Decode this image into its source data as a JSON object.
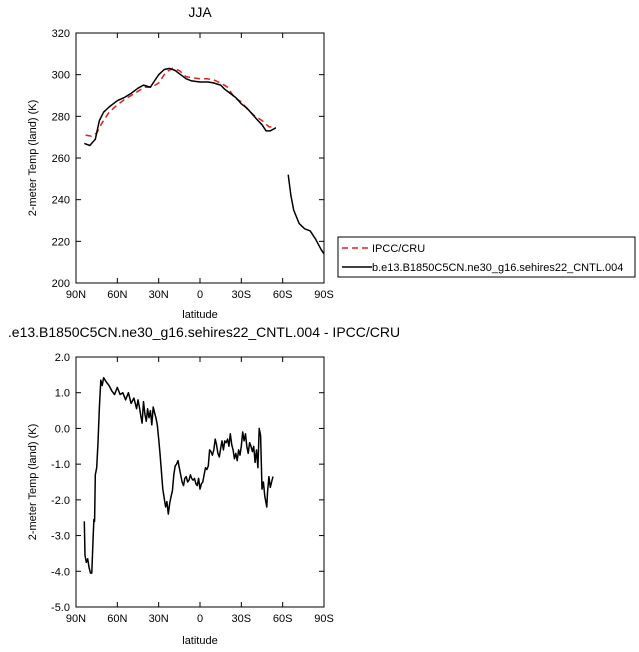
{
  "colors": {
    "cru": "#e01f1f",
    "model": "#000000",
    "axis": "#000000"
  },
  "chart_data": [
    {
      "type": "line",
      "title": "JJA",
      "xlabel": "latitude",
      "ylabel": "2-meter Temp (land) (K)",
      "xlim": [
        90,
        -90
      ],
      "ylim": [
        200,
        320
      ],
      "xticks": [
        {
          "v": 90,
          "label": "90N"
        },
        {
          "v": 60,
          "label": "60N"
        },
        {
          "v": 30,
          "label": "30N"
        },
        {
          "v": 0,
          "label": "0"
        },
        {
          "v": -30,
          "label": "30S"
        },
        {
          "v": -60,
          "label": "60S"
        },
        {
          "v": -90,
          "label": "90S"
        }
      ],
      "yticks": [
        {
          "v": 200,
          "label": "200"
        },
        {
          "v": 220,
          "label": "220"
        },
        {
          "v": 240,
          "label": "240"
        },
        {
          "v": 260,
          "label": "260"
        },
        {
          "v": 280,
          "label": "280"
        },
        {
          "v": 300,
          "label": "300"
        },
        {
          "v": 320,
          "label": "320"
        }
      ],
      "legend": {
        "placement": "right",
        "entries": [
          "IPCC/CRU",
          "b.e13.B1850C5CN.ne30_g16.sehires22_CNTL.004"
        ]
      },
      "series": [
        {
          "name": "IPCC/CRU",
          "style": "dashed",
          "segments": [
            [
              [
                83,
                271
              ],
              [
                79,
                270.5
              ],
              [
                75,
                272
              ],
              [
                71,
                277
              ],
              [
                66,
                282
              ],
              [
                60,
                285.5
              ],
              [
                55,
                288
              ],
              [
                50,
                290
              ],
              [
                45,
                292
              ],
              [
                40,
                294
              ],
              [
                35,
                294
              ],
              [
                30,
                296
              ],
              [
                25,
                301
              ],
              [
                20,
                303
              ],
              [
                15,
                302
              ],
              [
                10,
                299
              ],
              [
                5,
                298.5
              ],
              [
                0,
                298
              ],
              [
                -5,
                298
              ],
              [
                -10,
                297.5
              ],
              [
                -15,
                296
              ],
              [
                -20,
                294
              ],
              [
                -25,
                289
              ],
              [
                -30,
                287
              ],
              [
                -35,
                283
              ],
              [
                -40,
                280
              ],
              [
                -45,
                278
              ],
              [
                -50,
                275
              ],
              [
                -55,
                274.5
              ]
            ]
          ]
        },
        {
          "name": "b.e13.B1850C5CN.ne30_g16.sehires22_CNTL.004",
          "style": "solid",
          "segments": [
            [
              [
                84,
                267
              ],
              [
                80,
                266
              ],
              [
                76,
                269
              ],
              [
                73,
                278
              ],
              [
                70,
                282
              ],
              [
                66,
                284.5
              ],
              [
                60,
                287.5
              ],
              [
                55,
                289
              ],
              [
                50,
                291
              ],
              [
                45,
                293.5
              ],
              [
                41,
                295
              ],
              [
                36,
                294
              ],
              [
                33,
                297
              ],
              [
                30,
                300
              ],
              [
                26,
                302.5
              ],
              [
                22,
                303
              ],
              [
                18,
                302
              ],
              [
                14,
                300
              ],
              [
                10,
                298
              ],
              [
                6,
                297
              ],
              [
                0,
                296.5
              ],
              [
                -6,
                296.5
              ],
              [
                -10,
                296
              ],
              [
                -15,
                295
              ],
              [
                -18,
                293
              ],
              [
                -22,
                291
              ],
              [
                -26,
                289
              ],
              [
                -30,
                286
              ],
              [
                -34,
                284
              ],
              [
                -38,
                281
              ],
              [
                -42,
                278
              ],
              [
                -45,
                276
              ],
              [
                -48,
                273
              ],
              [
                -51,
                273
              ],
              [
                -55,
                274.5
              ]
            ],
            [
              [
                -64,
                252
              ],
              [
                -66,
                242
              ],
              [
                -68,
                235
              ],
              [
                -72,
                228.5
              ],
              [
                -76,
                226
              ],
              [
                -80,
                225
              ],
              [
                -84,
                221
              ],
              [
                -88,
                216
              ],
              [
                -90,
                214
              ]
            ]
          ]
        }
      ]
    },
    {
      "type": "line",
      "title": ".e13.B1850C5CN.ne30_g16.sehires22_CNTL.004 - IPCC/CRU",
      "xlabel": "latitude",
      "ylabel": "2-meter Temp (land) (K)",
      "xlim": [
        90,
        -90
      ],
      "ylim": [
        -5,
        2
      ],
      "xticks": [
        {
          "v": 90,
          "label": "90N"
        },
        {
          "v": 60,
          "label": "60N"
        },
        {
          "v": 30,
          "label": "30N"
        },
        {
          "v": 0,
          "label": "0"
        },
        {
          "v": -30,
          "label": "30S"
        },
        {
          "v": -60,
          "label": "60S"
        },
        {
          "v": -90,
          "label": "90S"
        }
      ],
      "yticks": [
        {
          "v": -5,
          "label": "-5.0"
        },
        {
          "v": -4,
          "label": "-4.0"
        },
        {
          "v": -3,
          "label": "-3.0"
        },
        {
          "v": -2,
          "label": "-2.0"
        },
        {
          "v": -1,
          "label": "-1.0"
        },
        {
          "v": 0,
          "label": "0.0"
        },
        {
          "v": 1,
          "label": "1.0"
        },
        {
          "v": 2,
          "label": "2.0"
        }
      ],
      "series": [
        {
          "style": "solid",
          "segments": [
            [
              [
                84,
                -2.6
              ],
              [
                83.5,
                -3.55
              ],
              [
                82.5,
                -3.75
              ],
              [
                81.5,
                -3.65
              ],
              [
                80.5,
                -3.9
              ],
              [
                79.5,
                -4.05
              ],
              [
                78.5,
                -4.05
              ],
              [
                77.5,
                -3.0
              ],
              [
                77,
                -2.55
              ],
              [
                76.5,
                -2.6
              ],
              [
                76,
                -1.3
              ],
              [
                75,
                -1.1
              ],
              [
                74,
                -0.4
              ],
              [
                73,
                0.6
              ],
              [
                72,
                1.35
              ],
              [
                71,
                1.2
              ],
              [
                70,
                1.42
              ],
              [
                68,
                1.3
              ],
              [
                66,
                1.2
              ],
              [
                64,
                1.05
              ],
              [
                62,
                0.95
              ],
              [
                60,
                1.15
              ],
              [
                58,
                0.95
              ],
              [
                56,
                1.0
              ],
              [
                54,
                0.8
              ],
              [
                52,
                1.0
              ],
              [
                50,
                0.7
              ],
              [
                48,
                0.85
              ],
              [
                46,
                0.55
              ],
              [
                45,
                0.8
              ],
              [
                44,
                0.6
              ],
              [
                43,
                0.35
              ],
              [
                42,
                0.15
              ],
              [
                41,
                0.75
              ],
              [
                40,
                0.4
              ],
              [
                39,
                0.2
              ],
              [
                38,
                0.55
              ],
              [
                37,
                0.3
              ],
              [
                36,
                0.5
              ],
              [
                35,
                0.1
              ],
              [
                34,
                0.6
              ],
              [
                33,
                0.45
              ],
              [
                32,
                0.3
              ],
              [
                31,
                0.1
              ],
              [
                30,
                -0.3
              ],
              [
                29,
                -0.7
              ],
              [
                28,
                -1.2
              ],
              [
                27,
                -1.7
              ],
              [
                26,
                -1.95
              ],
              [
                25,
                -2.2
              ],
              [
                24,
                -2.05
              ],
              [
                23,
                -2.4
              ],
              [
                22,
                -2.1
              ],
              [
                21,
                -1.9
              ],
              [
                20,
                -1.75
              ],
              [
                19,
                -1.3
              ],
              [
                18,
                -1.05
              ],
              [
                17,
                -1.0
              ],
              [
                16,
                -0.9
              ],
              [
                15,
                -1.1
              ],
              [
                14,
                -1.3
              ],
              [
                13,
                -1.5
              ],
              [
                12,
                -1.6
              ],
              [
                11,
                -1.4
              ],
              [
                10,
                -1.35
              ],
              [
                9,
                -1.5
              ],
              [
                8,
                -1.45
              ],
              [
                7,
                -1.3
              ],
              [
                6,
                -1.4
              ],
              [
                5,
                -1.45
              ],
              [
                4,
                -1.4
              ],
              [
                3,
                -1.55
              ],
              [
                2,
                -1.6
              ],
              [
                1,
                -1.4
              ],
              [
                0,
                -1.7
              ],
              [
                -1,
                -1.55
              ],
              [
                -2,
                -1.5
              ],
              [
                -3,
                -1.3
              ],
              [
                -4,
                -1.1
              ],
              [
                -5,
                -1.15
              ],
              [
                -6,
                -1.05
              ],
              [
                -7,
                -0.6
              ],
              [
                -8,
                -0.65
              ],
              [
                -9,
                -0.75
              ],
              [
                -10,
                -0.6
              ],
              [
                -11,
                -0.3
              ],
              [
                -12,
                -0.45
              ],
              [
                -13,
                -0.7
              ],
              [
                -14,
                -0.8
              ],
              [
                -15,
                -0.55
              ],
              [
                -16,
                -0.35
              ],
              [
                -17,
                -0.6
              ],
              [
                -18,
                -0.35
              ],
              [
                -19,
                -0.4
              ],
              [
                -20,
                -0.3
              ],
              [
                -21,
                -0.5
              ],
              [
                -22,
                -0.15
              ],
              [
                -23,
                -0.45
              ],
              [
                -24,
                -0.6
              ],
              [
                -25,
                -0.85
              ],
              [
                -26,
                -0.7
              ],
              [
                -27,
                -0.9
              ],
              [
                -28,
                -0.6
              ],
              [
                -29,
                -0.75
              ],
              [
                -30,
                -0.5
              ],
              [
                -31,
                -0.1
              ],
              [
                -32,
                -0.35
              ],
              [
                -33,
                -0.15
              ],
              [
                -34,
                -0.5
              ],
              [
                -35,
                -0.7
              ],
              [
                -36,
                -0.4
              ],
              [
                -37,
                -0.5
              ],
              [
                -38,
                -0.65
              ],
              [
                -39,
                -0.5
              ],
              [
                -40,
                -0.95
              ],
              [
                -41,
                -0.6
              ],
              [
                -42,
                -1.1
              ],
              [
                -43,
                0.0
              ],
              [
                -44,
                -0.2
              ],
              [
                -45,
                -1.7
              ],
              [
                -46,
                -1.5
              ],
              [
                -47,
                -1.9
              ],
              [
                -48,
                -2.1
              ],
              [
                -48.5,
                -2.2
              ],
              [
                -49,
                -1.8
              ],
              [
                -50,
                -1.35
              ],
              [
                -51,
                -1.65
              ],
              [
                -52,
                -1.5
              ],
              [
                -53,
                -1.35
              ]
            ]
          ]
        }
      ]
    }
  ]
}
